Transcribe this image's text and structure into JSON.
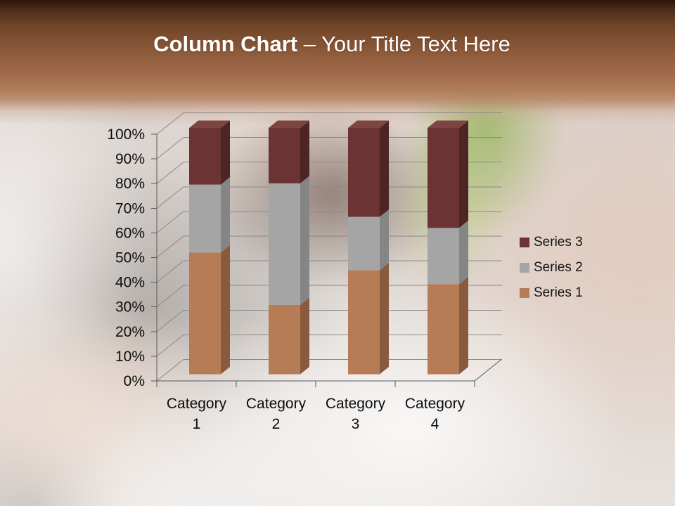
{
  "slide": {
    "title_bold": "Column Chart",
    "title_rest": " – Your Title Text Here"
  },
  "chart_data": {
    "type": "bar",
    "variant": "3d-100-percent-stacked-column",
    "title": "",
    "xlabel": "",
    "ylabel": "",
    "categories": [
      "Category 1",
      "Category 2",
      "Category 3",
      "Category 4"
    ],
    "series": [
      {
        "name": "Series 1",
        "color": "#B67C55",
        "color_dark": "#8A5A3C",
        "color_light": "#C99470",
        "values": [
          4.3,
          2.5,
          3.5,
          4.5
        ],
        "percent": [
          49.4,
          28.1,
          42.2,
          36.6
        ]
      },
      {
        "name": "Series 2",
        "color": "#A5A5A5",
        "color_dark": "#858585",
        "color_light": "#BFBFBF",
        "values": [
          2.4,
          4.4,
          1.8,
          2.8
        ],
        "percent": [
          27.6,
          49.4,
          21.7,
          22.8
        ]
      },
      {
        "name": "Series 3",
        "color": "#6B3433",
        "color_dark": "#4D2524",
        "color_light": "#7D4542",
        "values": [
          2.0,
          2.0,
          3.0,
          5.0
        ],
        "percent": [
          23.0,
          22.5,
          36.1,
          40.6
        ]
      }
    ],
    "y_axis_ticks": [
      "0%",
      "10%",
      "20%",
      "30%",
      "40%",
      "50%",
      "60%",
      "70%",
      "80%",
      "90%",
      "100%"
    ],
    "ylim": [
      0,
      100
    ],
    "grid": true,
    "legend": {
      "position": "right",
      "entries": [
        {
          "label": "Series 3",
          "color": "#6B3433"
        },
        {
          "label": "Series 2",
          "color": "#A5A5A5"
        },
        {
          "label": "Series 1",
          "color": "#B67C55"
        }
      ]
    }
  }
}
